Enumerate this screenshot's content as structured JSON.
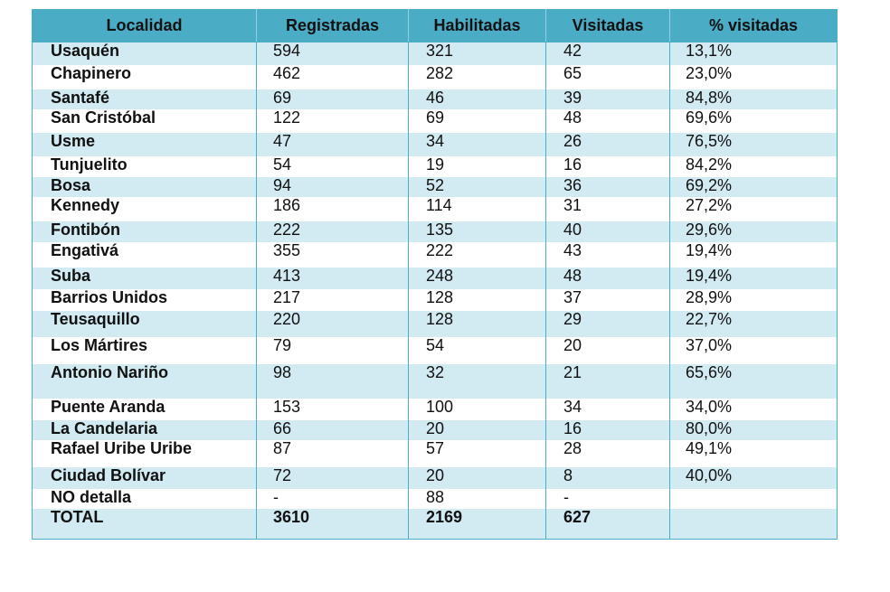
{
  "table": {
    "headers": [
      "Localidad",
      "Registradas",
      "Habilitadas",
      "Visitadas",
      "% visitadas"
    ],
    "rows": [
      [
        "Usaquén",
        "594",
        "321",
        "42",
        "13,1%"
      ],
      [
        "Chapinero",
        "462",
        "282",
        "65",
        "23,0%"
      ],
      [
        "Santafé",
        "69",
        "46",
        "39",
        "84,8%"
      ],
      [
        "San Cristóbal",
        "122",
        "69",
        "48",
        "69,6%"
      ],
      [
        "Usme",
        "47",
        "34",
        "26",
        "76,5%"
      ],
      [
        "Tunjuelito",
        "54",
        "19",
        "16",
        "84,2%"
      ],
      [
        "Bosa",
        "94",
        "52",
        "36",
        "69,2%"
      ],
      [
        "Kennedy",
        "186",
        "114",
        "31",
        "27,2%"
      ],
      [
        "Fontibón",
        "222",
        "135",
        "40",
        "29,6%"
      ],
      [
        "Engativá",
        "355",
        "222",
        "43",
        "19,4%"
      ],
      [
        "Suba",
        "413",
        "248",
        "48",
        "19,4%"
      ],
      [
        "Barrios Unidos",
        "217",
        "128",
        "37",
        "28,9%"
      ],
      [
        "Teusaquillo",
        "220",
        "128",
        "29",
        "22,7%"
      ],
      [
        "Los Mártires",
        "79",
        "54",
        "20",
        "37,0%"
      ],
      [
        "Antonio Nariño",
        "98",
        "32",
        "21",
        "65,6%"
      ],
      [
        "Puente Aranda",
        "153",
        "100",
        "34",
        "34,0%"
      ],
      [
        "La Candelaria",
        "66",
        "20",
        "16",
        "80,0%"
      ],
      [
        "Rafael Uribe Uribe",
        "87",
        "57",
        "28",
        "49,1%"
      ],
      [
        "Ciudad Bolívar",
        "72",
        "20",
        "8",
        "40,0%"
      ],
      [
        "NO detalla",
        "-",
        "88",
        "-",
        ""
      ],
      [
        "TOTAL",
        "3610",
        "2169",
        "627",
        ""
      ]
    ],
    "colors": {
      "header_bg": "#4bacc6",
      "band_bg": "#d2eaf1",
      "border": "#4bacc6"
    }
  }
}
